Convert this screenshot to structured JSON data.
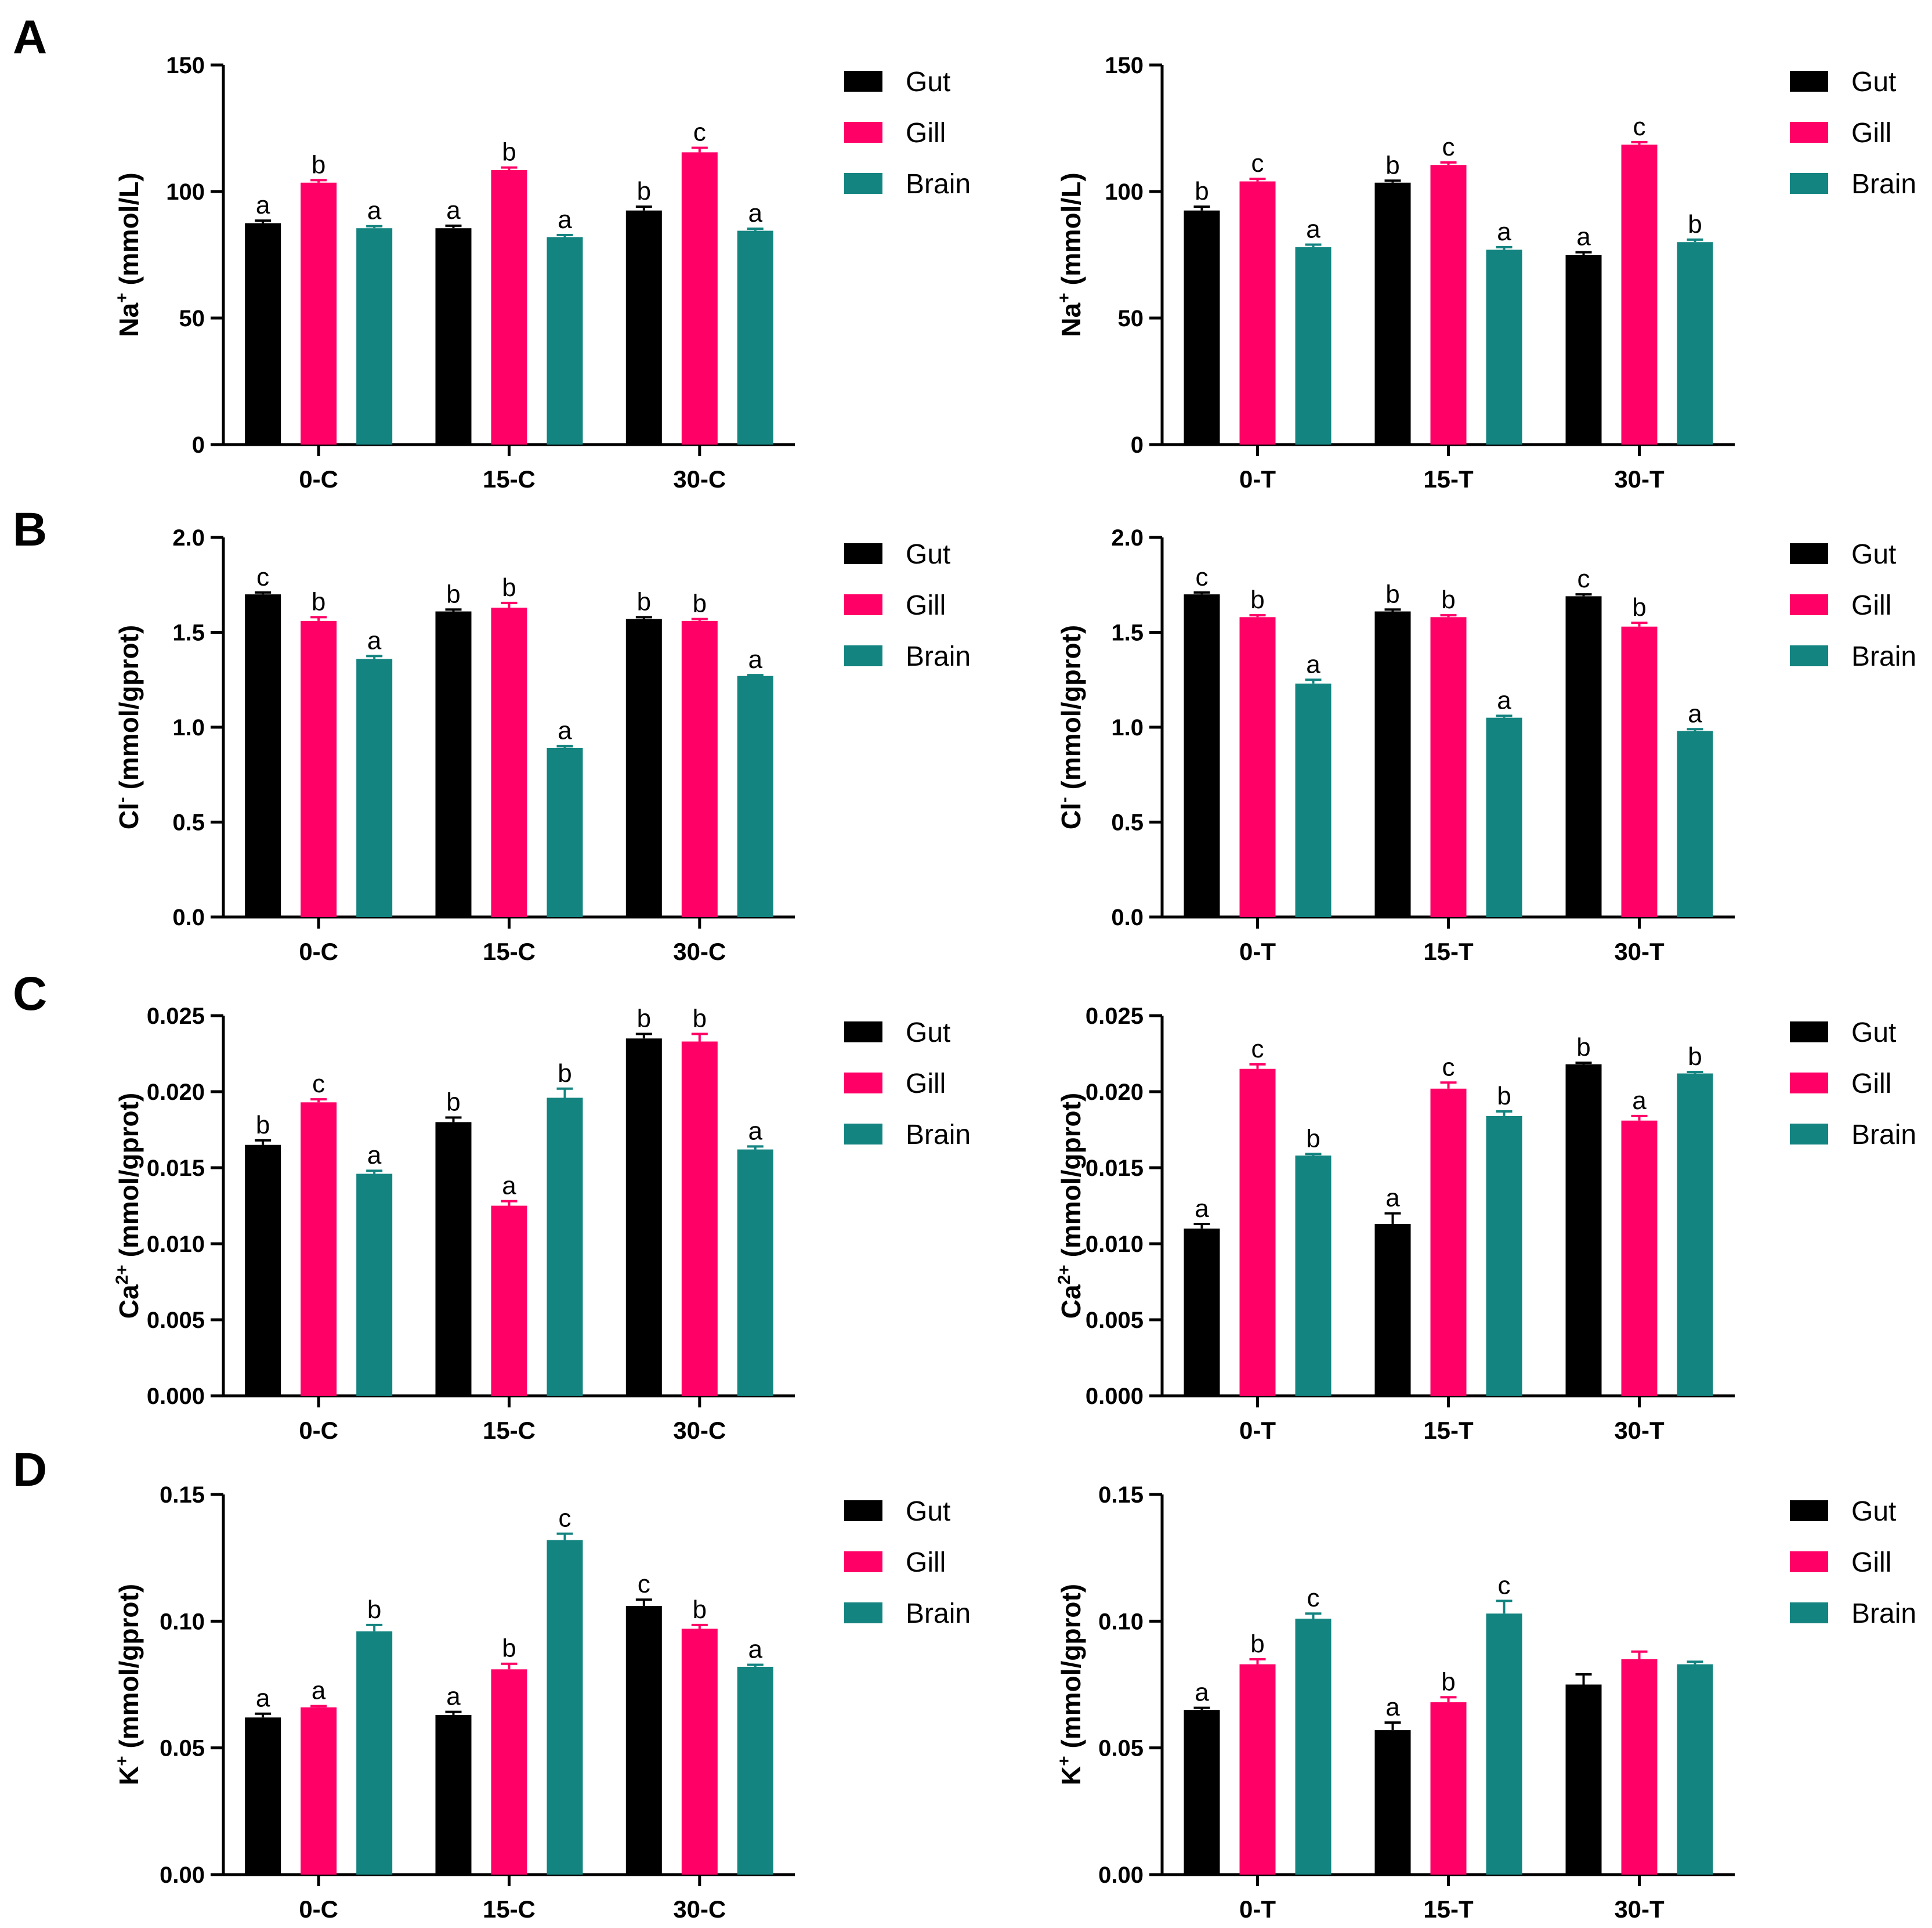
{
  "colors": {
    "gut": "#000000",
    "gill": "#ff0066",
    "brain": "#138480",
    "axis": "#000000"
  },
  "legend": [
    "Gut",
    "Gill",
    "Brain"
  ],
  "panel_letters": [
    "A",
    "B",
    "C",
    "D"
  ],
  "chart_data": [
    {
      "id": "A-left",
      "type": "bar",
      "panel": "A",
      "ylabel_base": "Na",
      "ylabel_sup": "+",
      "ylabel_unit": " (mmol/L)",
      "ylim": [
        0,
        150
      ],
      "ticks": [
        "0",
        "50",
        "100",
        "150"
      ],
      "categories": [
        "0-C",
        "15-C",
        "30-C"
      ],
      "series": [
        {
          "name": "Gut",
          "values": [
            87.5,
            85.5,
            92.5
          ],
          "errors": [
            1,
            1,
            1.5
          ],
          "letters": [
            "a",
            "a",
            "b"
          ]
        },
        {
          "name": "Gill",
          "values": [
            103.5,
            108.5,
            115.5
          ],
          "errors": [
            1,
            1,
            1.8
          ],
          "letters": [
            "b",
            "b",
            "c"
          ]
        },
        {
          "name": "Brain",
          "values": [
            85.5,
            82,
            84.5
          ],
          "errors": [
            0.8,
            0.8,
            0.8
          ],
          "letters": [
            "a",
            "a",
            "a"
          ]
        }
      ]
    },
    {
      "id": "A-right",
      "type": "bar",
      "panel": "A",
      "ylabel_base": "Na",
      "ylabel_sup": "+",
      "ylabel_unit": " (mmol/L)",
      "ylim": [
        0,
        150
      ],
      "ticks": [
        "0",
        "50",
        "100",
        "150"
      ],
      "categories": [
        "0-T",
        "15-T",
        "30-T"
      ],
      "series": [
        {
          "name": "Gut",
          "values": [
            92.5,
            103.5,
            75
          ],
          "errors": [
            1.5,
            0.8,
            1
          ],
          "letters": [
            "b",
            "b",
            "a"
          ]
        },
        {
          "name": "Gill",
          "values": [
            104,
            110.5,
            118.5
          ],
          "errors": [
            1,
            1,
            1
          ],
          "letters": [
            "c",
            "c",
            "c"
          ]
        },
        {
          "name": "Brain",
          "values": [
            78,
            77,
            80
          ],
          "errors": [
            1,
            1,
            1
          ],
          "letters": [
            "a",
            "a",
            "b"
          ]
        }
      ]
    },
    {
      "id": "B-left",
      "type": "bar",
      "panel": "B",
      "ylabel_base": "Cl",
      "ylabel_sup": "-",
      "ylabel_unit": " (mmol/gprot)",
      "ylim": [
        0,
        2.0
      ],
      "ticks": [
        "0.0",
        "0.5",
        "1.0",
        "1.5",
        "2.0"
      ],
      "categories": [
        "0-C",
        "15-C",
        "30-C"
      ],
      "series": [
        {
          "name": "Gut",
          "values": [
            1.7,
            1.61,
            1.57
          ],
          "errors": [
            0.01,
            0.01,
            0.01
          ],
          "letters": [
            "c",
            "b",
            "b"
          ]
        },
        {
          "name": "Gill",
          "values": [
            1.56,
            1.63,
            1.56
          ],
          "errors": [
            0.02,
            0.025,
            0.01
          ],
          "letters": [
            "b",
            "b",
            "b"
          ]
        },
        {
          "name": "Brain",
          "values": [
            1.36,
            0.89,
            1.27
          ],
          "errors": [
            0.015,
            0.01,
            0.005
          ],
          "letters": [
            "a",
            "a",
            "a"
          ]
        }
      ]
    },
    {
      "id": "B-right",
      "type": "bar",
      "panel": "B",
      "ylabel_base": "Cl",
      "ylabel_sup": "-",
      "ylabel_unit": " (mmol/gprot)",
      "ylim": [
        0,
        2.0
      ],
      "ticks": [
        "0.0",
        "0.5",
        "1.0",
        "1.5",
        "2.0"
      ],
      "categories": [
        "0-T",
        "15-T",
        "30-T"
      ],
      "series": [
        {
          "name": "Gut",
          "values": [
            1.7,
            1.61,
            1.69
          ],
          "errors": [
            0.01,
            0.01,
            0.01
          ],
          "letters": [
            "c",
            "b",
            "c"
          ]
        },
        {
          "name": "Gill",
          "values": [
            1.58,
            1.58,
            1.53
          ],
          "errors": [
            0.01,
            0.01,
            0.02
          ],
          "letters": [
            "b",
            "b",
            "b"
          ]
        },
        {
          "name": "Brain",
          "values": [
            1.23,
            1.05,
            0.98
          ],
          "errors": [
            0.02,
            0.01,
            0.01
          ],
          "letters": [
            "a",
            "a",
            "a"
          ]
        }
      ]
    },
    {
      "id": "C-left",
      "type": "bar",
      "panel": "C",
      "ylabel_base": "Ca",
      "ylabel_sup": "2+",
      "ylabel_unit": " (mmol/gprot)",
      "ylim": [
        0,
        0.025
      ],
      "ticks": [
        "0.000",
        "0.005",
        "0.010",
        "0.015",
        "0.020",
        "0.025"
      ],
      "categories": [
        "0-C",
        "15-C",
        "30-C"
      ],
      "series": [
        {
          "name": "Gut",
          "values": [
            0.0165,
            0.018,
            0.0235
          ],
          "errors": [
            0.0003,
            0.0003,
            0.0003
          ],
          "letters": [
            "b",
            "b",
            "b"
          ]
        },
        {
          "name": "Gill",
          "values": [
            0.0193,
            0.0125,
            0.0233
          ],
          "errors": [
            0.0002,
            0.0003,
            0.0005
          ],
          "letters": [
            "c",
            "a",
            "b"
          ]
        },
        {
          "name": "Brain",
          "values": [
            0.0146,
            0.0196,
            0.0162
          ],
          "errors": [
            0.0002,
            0.0006,
            0.0002
          ],
          "letters": [
            "a",
            "b",
            "a"
          ]
        }
      ]
    },
    {
      "id": "C-right",
      "type": "bar",
      "panel": "C",
      "ylabel_base": "Ca",
      "ylabel_sup": "2+",
      "ylabel_unit": " (mmol/gprot)",
      "ylim": [
        0,
        0.025
      ],
      "ticks": [
        "0.000",
        "0.005",
        "0.010",
        "0.015",
        "0.020",
        "0.025"
      ],
      "categories": [
        "0-T",
        "15-T",
        "30-T"
      ],
      "series": [
        {
          "name": "Gut",
          "values": [
            0.011,
            0.0113,
            0.0218
          ],
          "errors": [
            0.0003,
            0.0007,
            0.0001
          ],
          "letters": [
            "a",
            "a",
            "b"
          ]
        },
        {
          "name": "Gill",
          "values": [
            0.0215,
            0.0202,
            0.0181
          ],
          "errors": [
            0.0003,
            0.0004,
            0.0003
          ],
          "letters": [
            "c",
            "c",
            "a"
          ]
        },
        {
          "name": "Brain",
          "values": [
            0.0158,
            0.0184,
            0.0212
          ],
          "errors": [
            0.0001,
            0.0003,
            0.0001
          ],
          "letters": [
            "b",
            "b",
            "b"
          ]
        }
      ]
    },
    {
      "id": "D-left",
      "type": "bar",
      "panel": "D",
      "ylabel_base": "K",
      "ylabel_sup": "+",
      "ylabel_unit": " (mmol/gprot)",
      "ylim": [
        0,
        0.15
      ],
      "ticks": [
        "0.00",
        "0.05",
        "0.10",
        "0.15"
      ],
      "categories": [
        "0-C",
        "15-C",
        "30-C"
      ],
      "series": [
        {
          "name": "Gut",
          "values": [
            0.062,
            0.063,
            0.106
          ],
          "errors": [
            0.0015,
            0.0012,
            0.0025
          ],
          "letters": [
            "a",
            "a",
            "c"
          ]
        },
        {
          "name": "Gill",
          "values": [
            0.066,
            0.081,
            0.097
          ],
          "errors": [
            0.0005,
            0.0022,
            0.0015
          ],
          "letters": [
            "a",
            "b",
            "b"
          ]
        },
        {
          "name": "Brain",
          "values": [
            0.096,
            0.132,
            0.082
          ],
          "errors": [
            0.0025,
            0.0025,
            0.0008
          ],
          "letters": [
            "b",
            "c",
            "a"
          ]
        }
      ]
    },
    {
      "id": "D-right",
      "type": "bar",
      "panel": "D",
      "ylabel_base": "K",
      "ylabel_sup": "+",
      "ylabel_unit": " (mmol/gprot)",
      "ylim": [
        0,
        0.15
      ],
      "ticks": [
        "0.00",
        "0.05",
        "0.10",
        "0.15"
      ],
      "categories": [
        "0-T",
        "15-T",
        "30-T"
      ],
      "series": [
        {
          "name": "Gut",
          "values": [
            0.065,
            0.057,
            0.075
          ],
          "errors": [
            0.0008,
            0.003,
            0.004
          ],
          "letters": [
            "a",
            "a",
            ""
          ]
        },
        {
          "name": "Gill",
          "values": [
            0.083,
            0.068,
            0.085
          ],
          "errors": [
            0.002,
            0.002,
            0.003
          ],
          "letters": [
            "b",
            "b",
            ""
          ]
        },
        {
          "name": "Brain",
          "values": [
            0.101,
            0.103,
            0.083
          ],
          "errors": [
            0.002,
            0.005,
            0.001
          ],
          "letters": [
            "c",
            "c",
            ""
          ]
        }
      ]
    }
  ]
}
